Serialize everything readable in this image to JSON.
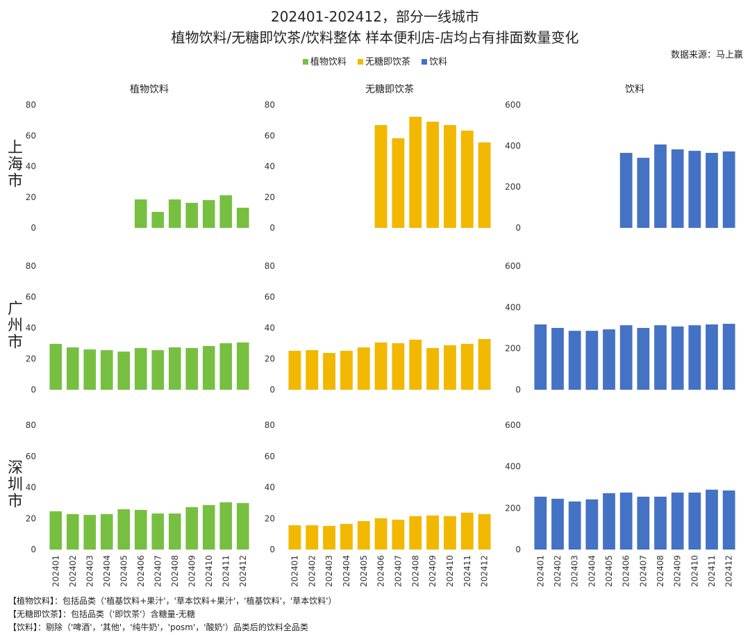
{
  "title_line1": "202401-202412，部分一线城市",
  "title_line2": "植物饮料/无糖即饮茶/饮料整体 样本便利店-店均占有排面数量变化",
  "source": "数据来源：马上赢",
  "notes": [
    "【植物饮料】：包括品类（'植基饮料+果汁'，'草本饮料+果汁'，'植基饮料'，'草本饮料'）",
    "【无糖即饮茶】：包括品类（'即饮茶'）含糖量-无糖",
    "【饮料】：剔除（'啤酒'，'其他'，'纯牛奶'，'posm'，'酸奶'）品类后的饮料全品类"
  ],
  "chart_data": {
    "type": "bar",
    "legend": [
      {
        "name": "植物饮料",
        "color": "#77bf41"
      },
      {
        "name": "无糖即饮茶",
        "color": "#f2b800"
      },
      {
        "name": "饮料",
        "color": "#4472c4"
      }
    ],
    "legend_placement": "top",
    "grid": false,
    "categories": [
      "202401",
      "202402",
      "202403",
      "202404",
      "202405",
      "202406",
      "202407",
      "202408",
      "202409",
      "202410",
      "202411",
      "202412"
    ],
    "columns": [
      {
        "title": "植物饮料",
        "ylim": [
          0,
          80
        ],
        "yticks": [
          0,
          20,
          40,
          60,
          80
        ],
        "color": "#77bf41"
      },
      {
        "title": "无糖即饮茶",
        "ylim": [
          0,
          80
        ],
        "yticks": [
          0,
          20,
          40,
          60,
          80
        ],
        "color": "#f2b800"
      },
      {
        "title": "饮料",
        "ylim": [
          0,
          600
        ],
        "yticks": [
          0,
          200,
          400,
          600
        ],
        "color": "#4472c4"
      }
    ],
    "rows": [
      {
        "city": "上海市",
        "series": [
          [
            null,
            null,
            null,
            null,
            null,
            18.5,
            10.4,
            18.5,
            16.3,
            18.1,
            21.2,
            13.1
          ],
          [
            null,
            null,
            null,
            null,
            null,
            66.9,
            58.3,
            72.3,
            69.1,
            66.9,
            63.3,
            55.6
          ],
          [
            null,
            null,
            null,
            null,
            null,
            366,
            342,
            407,
            383,
            376,
            366,
            373
          ]
        ]
      },
      {
        "city": "广州市",
        "series": [
          [
            29.7,
            27.4,
            26.1,
            25.6,
            24.7,
            27.0,
            25.6,
            27.4,
            27.0,
            28.3,
            30.1,
            30.6
          ],
          [
            25.2,
            25.6,
            23.8,
            25.2,
            27.4,
            30.6,
            30.1,
            32.4,
            27.0,
            28.8,
            29.7,
            32.8
          ],
          [
            317,
            300,
            286,
            286,
            293,
            313,
            300,
            313,
            307,
            313,
            317,
            320
          ]
        ]
      },
      {
        "city": "深圳市",
        "series": [
          [
            24.6,
            22.8,
            22.3,
            22.8,
            25.9,
            25.5,
            23.2,
            23.2,
            27.3,
            28.6,
            30.4,
            29.9
          ],
          [
            15.6,
            15.6,
            15.2,
            16.5,
            18.3,
            20.1,
            19.2,
            21.5,
            21.9,
            21.5,
            23.7,
            22.8
          ],
          [
            255,
            245,
            232,
            242,
            272,
            275,
            255,
            255,
            275,
            275,
            289,
            285
          ]
        ]
      }
    ]
  }
}
